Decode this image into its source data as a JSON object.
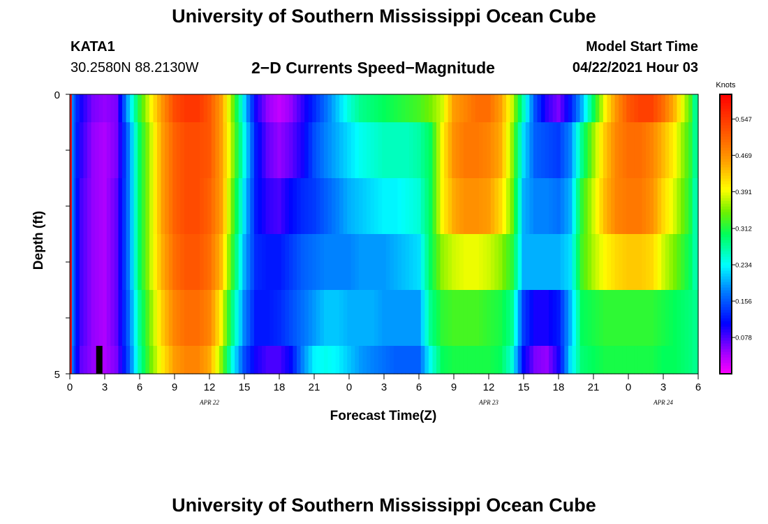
{
  "header": {
    "title_top": "University of Southern Mississippi Ocean Cube",
    "title_bottom": "University of Southern Mississippi Ocean Cube",
    "station": "KATA1",
    "coordinates": "30.2580N  88.2130W",
    "subtitle": "2−D Currents Speed−Magnitude",
    "model_start_label": "Model Start Time",
    "model_start_value": "04/22/2021 Hour 03"
  },
  "chart_data": {
    "type": "heatmap",
    "title": "2-D Currents Speed-Magnitude",
    "xlabel": "Forecast Time(Z)",
    "ylabel": "Depth (ft)",
    "x_hours": [
      0,
      1,
      2,
      3,
      4,
      5,
      6,
      7,
      8,
      9,
      10,
      11,
      12,
      13,
      14,
      15,
      16,
      17,
      18,
      19,
      20,
      21,
      22,
      23,
      24,
      25,
      26,
      27,
      28,
      29,
      30,
      31,
      32,
      33,
      34,
      35,
      36,
      37,
      38,
      39,
      40,
      41,
      42,
      43,
      44,
      45,
      46,
      47,
      48,
      49,
      50,
      51,
      52,
      53,
      54
    ],
    "x_range": [
      0,
      54
    ],
    "x_tick_positions": [
      0,
      3,
      6,
      9,
      12,
      15,
      18,
      21,
      24,
      27,
      30,
      33,
      36,
      39,
      42,
      45,
      48,
      51,
      54
    ],
    "x_tick_labels": [
      "0",
      "3",
      "6",
      "9",
      "12",
      "15",
      "18",
      "21",
      "0",
      "3",
      "6",
      "9",
      "12",
      "15",
      "18",
      "21",
      "0",
      "3",
      "6"
    ],
    "date_labels": [
      {
        "label": "APR  22",
        "hour": 12
      },
      {
        "label": "APR  23",
        "hour": 36
      },
      {
        "label": "APR  24",
        "hour": 51
      }
    ],
    "y_range": [
      0,
      5
    ],
    "y_tick_labels": [
      "0",
      "5"
    ],
    "depth_levels": 5,
    "z_units": "Knots",
    "z_range": [
      0.0,
      0.6
    ],
    "colorbar_ticks": [
      "0.547",
      "0.469",
      "0.391",
      "0.312",
      "0.234",
      "0.156",
      "0.078"
    ],
    "colorbar_tick_values": [
      0.547,
      0.469,
      0.391,
      0.312,
      0.234,
      0.156,
      0.078
    ],
    "model_start_marker_hour": 2.5,
    "speed_knots": [
      [
        0.18,
        0.1,
        0.06,
        0.05,
        0.06,
        0.2,
        0.32,
        0.4,
        0.47,
        0.53,
        0.55,
        0.55,
        0.52,
        0.46,
        0.35,
        0.22,
        0.1,
        0.05,
        0.03,
        0.05,
        0.09,
        0.13,
        0.17,
        0.21,
        0.25,
        0.28,
        0.29,
        0.3,
        0.31,
        0.32,
        0.33,
        0.35,
        0.38,
        0.46,
        0.48,
        0.5,
        0.5,
        0.46,
        0.38,
        0.26,
        0.15,
        0.09,
        0.06,
        0.12,
        0.2,
        0.3,
        0.4,
        0.47,
        0.52,
        0.54,
        0.54,
        0.5,
        0.44,
        0.36,
        0.28
      ],
      [
        0.18,
        0.09,
        0.05,
        0.04,
        0.06,
        0.17,
        0.3,
        0.38,
        0.46,
        0.51,
        0.53,
        0.53,
        0.52,
        0.46,
        0.36,
        0.24,
        0.12,
        0.07,
        0.05,
        0.07,
        0.1,
        0.15,
        0.18,
        0.2,
        0.22,
        0.24,
        0.25,
        0.26,
        0.26,
        0.26,
        0.27,
        0.3,
        0.4,
        0.47,
        0.49,
        0.49,
        0.48,
        0.45,
        0.36,
        0.22,
        0.16,
        0.15,
        0.14,
        0.18,
        0.28,
        0.36,
        0.43,
        0.48,
        0.5,
        0.5,
        0.48,
        0.44,
        0.4,
        0.34,
        0.28
      ],
      [
        0.18,
        0.08,
        0.05,
        0.04,
        0.07,
        0.17,
        0.3,
        0.38,
        0.46,
        0.51,
        0.53,
        0.53,
        0.51,
        0.46,
        0.34,
        0.22,
        0.12,
        0.09,
        0.08,
        0.11,
        0.13,
        0.14,
        0.16,
        0.18,
        0.2,
        0.21,
        0.22,
        0.23,
        0.23,
        0.24,
        0.25,
        0.3,
        0.4,
        0.45,
        0.47,
        0.47,
        0.46,
        0.42,
        0.35,
        0.2,
        0.18,
        0.18,
        0.17,
        0.2,
        0.32,
        0.38,
        0.44,
        0.48,
        0.49,
        0.49,
        0.47,
        0.42,
        0.38,
        0.33,
        0.27
      ],
      [
        0.18,
        0.08,
        0.05,
        0.04,
        0.07,
        0.17,
        0.3,
        0.38,
        0.45,
        0.5,
        0.52,
        0.52,
        0.5,
        0.44,
        0.32,
        0.2,
        0.13,
        0.12,
        0.12,
        0.14,
        0.16,
        0.17,
        0.18,
        0.18,
        0.18,
        0.19,
        0.19,
        0.19,
        0.2,
        0.21,
        0.22,
        0.3,
        0.36,
        0.38,
        0.39,
        0.39,
        0.38,
        0.36,
        0.32,
        0.2,
        0.2,
        0.2,
        0.2,
        0.22,
        0.33,
        0.37,
        0.4,
        0.42,
        0.43,
        0.43,
        0.42,
        0.38,
        0.35,
        0.31,
        0.27
      ],
      [
        0.18,
        0.08,
        0.05,
        0.04,
        0.07,
        0.16,
        0.28,
        0.36,
        0.43,
        0.48,
        0.5,
        0.5,
        0.48,
        0.4,
        0.28,
        0.18,
        0.12,
        0.12,
        0.13,
        0.15,
        0.17,
        0.19,
        0.21,
        0.21,
        0.2,
        0.2,
        0.2,
        0.19,
        0.19,
        0.19,
        0.19,
        0.28,
        0.32,
        0.33,
        0.33,
        0.33,
        0.32,
        0.31,
        0.28,
        0.14,
        0.1,
        0.1,
        0.12,
        0.2,
        0.3,
        0.31,
        0.32,
        0.32,
        0.32,
        0.32,
        0.32,
        0.31,
        0.3,
        0.29,
        0.28
      ],
      [
        0.17,
        0.07,
        0.05,
        0.04,
        0.06,
        0.15,
        0.27,
        0.35,
        0.41,
        0.46,
        0.48,
        0.48,
        0.45,
        0.36,
        0.24,
        0.15,
        0.1,
        0.08,
        0.08,
        0.11,
        0.18,
        0.23,
        0.24,
        0.23,
        0.21,
        0.19,
        0.18,
        0.17,
        0.16,
        0.16,
        0.16,
        0.24,
        0.3,
        0.31,
        0.31,
        0.31,
        0.31,
        0.3,
        0.25,
        0.11,
        0.06,
        0.05,
        0.1,
        0.22,
        0.29,
        0.3,
        0.31,
        0.31,
        0.31,
        0.31,
        0.31,
        0.3,
        0.3,
        0.29,
        0.28
      ]
    ]
  }
}
